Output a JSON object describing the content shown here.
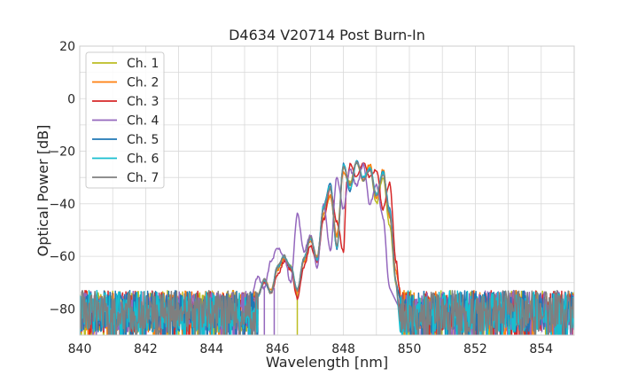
{
  "chart_data": {
    "type": "line",
    "title": "D4634 V20714 Post Burn-In",
    "xlabel": "Wavelength [nm]",
    "ylabel": "Optical Power [dB]",
    "xlim": [
      840,
      855
    ],
    "ylim": [
      -90,
      20
    ],
    "x_ticks": [
      "840",
      "842",
      "844",
      "846",
      "848",
      "850",
      "852",
      "854"
    ],
    "y_ticks": [
      "20",
      "0",
      "−20",
      "−40",
      "−60",
      "−80"
    ],
    "grid": true,
    "legend_position": "top-left",
    "noise_floor_db": -80,
    "series": [
      {
        "name": "Ch. 1",
        "color": "#bcbd22",
        "points": [
          [
            845.4,
            -75
          ],
          [
            845.6,
            -69
          ],
          [
            845.8,
            -74
          ],
          [
            846.0,
            -65
          ],
          [
            846.2,
            -61
          ],
          [
            846.4,
            -64
          ],
          [
            846.6,
            -74
          ],
          [
            846.8,
            -62
          ],
          [
            847.0,
            -53
          ],
          [
            847.2,
            -62
          ],
          [
            847.4,
            -44
          ],
          [
            847.6,
            -37
          ],
          [
            847.8,
            -53
          ],
          [
            848.0,
            -26
          ],
          [
            848.2,
            -32
          ],
          [
            848.4,
            -24
          ],
          [
            848.6,
            -31
          ],
          [
            848.8,
            -26
          ],
          [
            849.0,
            -40
          ],
          [
            849.2,
            -30
          ],
          [
            849.4,
            -48
          ],
          [
            849.6,
            -71
          ]
        ],
        "dropouts": [
          846.6
        ]
      },
      {
        "name": "Ch. 2",
        "color": "#ff7f0e",
        "points": [
          [
            845.4,
            -75
          ],
          [
            845.6,
            -69
          ],
          [
            845.8,
            -73
          ],
          [
            846.0,
            -65
          ],
          [
            846.2,
            -61
          ],
          [
            846.4,
            -64
          ],
          [
            846.6,
            -74
          ],
          [
            846.8,
            -62
          ],
          [
            847.0,
            -54
          ],
          [
            847.2,
            -60
          ],
          [
            847.4,
            -44
          ],
          [
            847.6,
            -37
          ],
          [
            847.8,
            -52
          ],
          [
            848.0,
            -28
          ],
          [
            848.2,
            -33
          ],
          [
            848.4,
            -24
          ],
          [
            848.6,
            -31
          ],
          [
            848.8,
            -25
          ],
          [
            849.0,
            -38
          ],
          [
            849.2,
            -27
          ],
          [
            849.4,
            -45
          ],
          [
            849.6,
            -66
          ],
          [
            849.7,
            -72
          ]
        ],
        "dropouts": []
      },
      {
        "name": "Ch. 3",
        "color": "#d62728",
        "points": [
          [
            845.4,
            -75
          ],
          [
            845.6,
            -70
          ],
          [
            845.8,
            -74
          ],
          [
            846.0,
            -67
          ],
          [
            846.2,
            -62
          ],
          [
            846.4,
            -65
          ],
          [
            846.6,
            -76
          ],
          [
            846.8,
            -64
          ],
          [
            847.0,
            -56
          ],
          [
            847.2,
            -62
          ],
          [
            847.4,
            -46
          ],
          [
            847.6,
            -34
          ],
          [
            847.8,
            -47
          ],
          [
            848.0,
            -58
          ],
          [
            848.1,
            -32
          ],
          [
            848.2,
            -25
          ],
          [
            848.4,
            -30
          ],
          [
            848.6,
            -24
          ],
          [
            848.8,
            -30
          ],
          [
            849.0,
            -27
          ],
          [
            849.2,
            -42
          ],
          [
            849.4,
            -32
          ],
          [
            849.6,
            -62
          ],
          [
            849.7,
            -72
          ]
        ],
        "dropouts": []
      },
      {
        "name": "Ch. 4",
        "color": "#9467bd",
        "points": [
          [
            845.2,
            -75
          ],
          [
            845.4,
            -68
          ],
          [
            845.6,
            -72
          ],
          [
            845.8,
            -62
          ],
          [
            846.0,
            -57
          ],
          [
            846.2,
            -60
          ],
          [
            846.4,
            -70
          ],
          [
            846.6,
            -44
          ],
          [
            846.8,
            -58
          ],
          [
            847.0,
            -52
          ],
          [
            847.2,
            -64
          ],
          [
            847.4,
            -40
          ],
          [
            847.6,
            -58
          ],
          [
            847.8,
            -30
          ],
          [
            848.0,
            -42
          ],
          [
            848.2,
            -27
          ],
          [
            848.4,
            -33
          ],
          [
            848.6,
            -25
          ],
          [
            848.8,
            -40
          ],
          [
            849.0,
            -33
          ],
          [
            849.2,
            -45
          ],
          [
            849.4,
            -72
          ]
        ],
        "dropouts": [
          845.6,
          845.9
        ]
      },
      {
        "name": "Ch. 5",
        "color": "#1f77b4",
        "points": [
          [
            845.4,
            -75
          ],
          [
            845.6,
            -69
          ],
          [
            845.8,
            -74
          ],
          [
            846.0,
            -64
          ],
          [
            846.2,
            -60
          ],
          [
            846.4,
            -64
          ],
          [
            846.6,
            -73
          ],
          [
            846.8,
            -61
          ],
          [
            847.0,
            -53
          ],
          [
            847.2,
            -61
          ],
          [
            847.4,
            -41
          ],
          [
            847.6,
            -32
          ],
          [
            847.8,
            -57
          ],
          [
            848.0,
            -25
          ],
          [
            848.2,
            -35
          ],
          [
            848.4,
            -24
          ],
          [
            848.6,
            -30
          ],
          [
            848.8,
            -27
          ],
          [
            849.0,
            -37
          ],
          [
            849.2,
            -28
          ],
          [
            849.4,
            -42
          ],
          [
            849.6,
            -70
          ]
        ],
        "dropouts": []
      },
      {
        "name": "Ch. 6",
        "color": "#17becf",
        "points": [
          [
            845.4,
            -75
          ],
          [
            845.6,
            -69
          ],
          [
            845.8,
            -74
          ],
          [
            846.0,
            -64
          ],
          [
            846.2,
            -60
          ],
          [
            846.4,
            -64
          ],
          [
            846.6,
            -73
          ],
          [
            846.8,
            -61
          ],
          [
            847.0,
            -53
          ],
          [
            847.2,
            -61
          ],
          [
            847.4,
            -41
          ],
          [
            847.6,
            -33
          ],
          [
            847.8,
            -57
          ],
          [
            848.0,
            -25
          ],
          [
            848.2,
            -34
          ],
          [
            848.4,
            -24
          ],
          [
            848.6,
            -30
          ],
          [
            848.8,
            -26
          ],
          [
            849.0,
            -36
          ],
          [
            849.2,
            -28
          ],
          [
            849.4,
            -43
          ],
          [
            849.6,
            -70
          ]
        ],
        "dropouts": []
      },
      {
        "name": "Ch. 7",
        "color": "#7f7f7f",
        "points": [
          [
            845.4,
            -75
          ],
          [
            845.6,
            -69
          ],
          [
            845.8,
            -74
          ],
          [
            846.0,
            -64
          ],
          [
            846.2,
            -60
          ],
          [
            846.4,
            -64
          ],
          [
            846.6,
            -73
          ],
          [
            846.8,
            -61
          ],
          [
            847.0,
            -53
          ],
          [
            847.2,
            -61
          ],
          [
            847.4,
            -42
          ],
          [
            847.6,
            -34
          ],
          [
            847.8,
            -56
          ],
          [
            848.0,
            -26
          ],
          [
            848.2,
            -33
          ],
          [
            848.4,
            -24
          ],
          [
            848.6,
            -31
          ],
          [
            848.8,
            -27
          ],
          [
            849.0,
            -37
          ],
          [
            849.2,
            -29
          ],
          [
            849.4,
            -44
          ],
          [
            849.6,
            -70
          ]
        ],
        "dropouts": []
      }
    ]
  }
}
